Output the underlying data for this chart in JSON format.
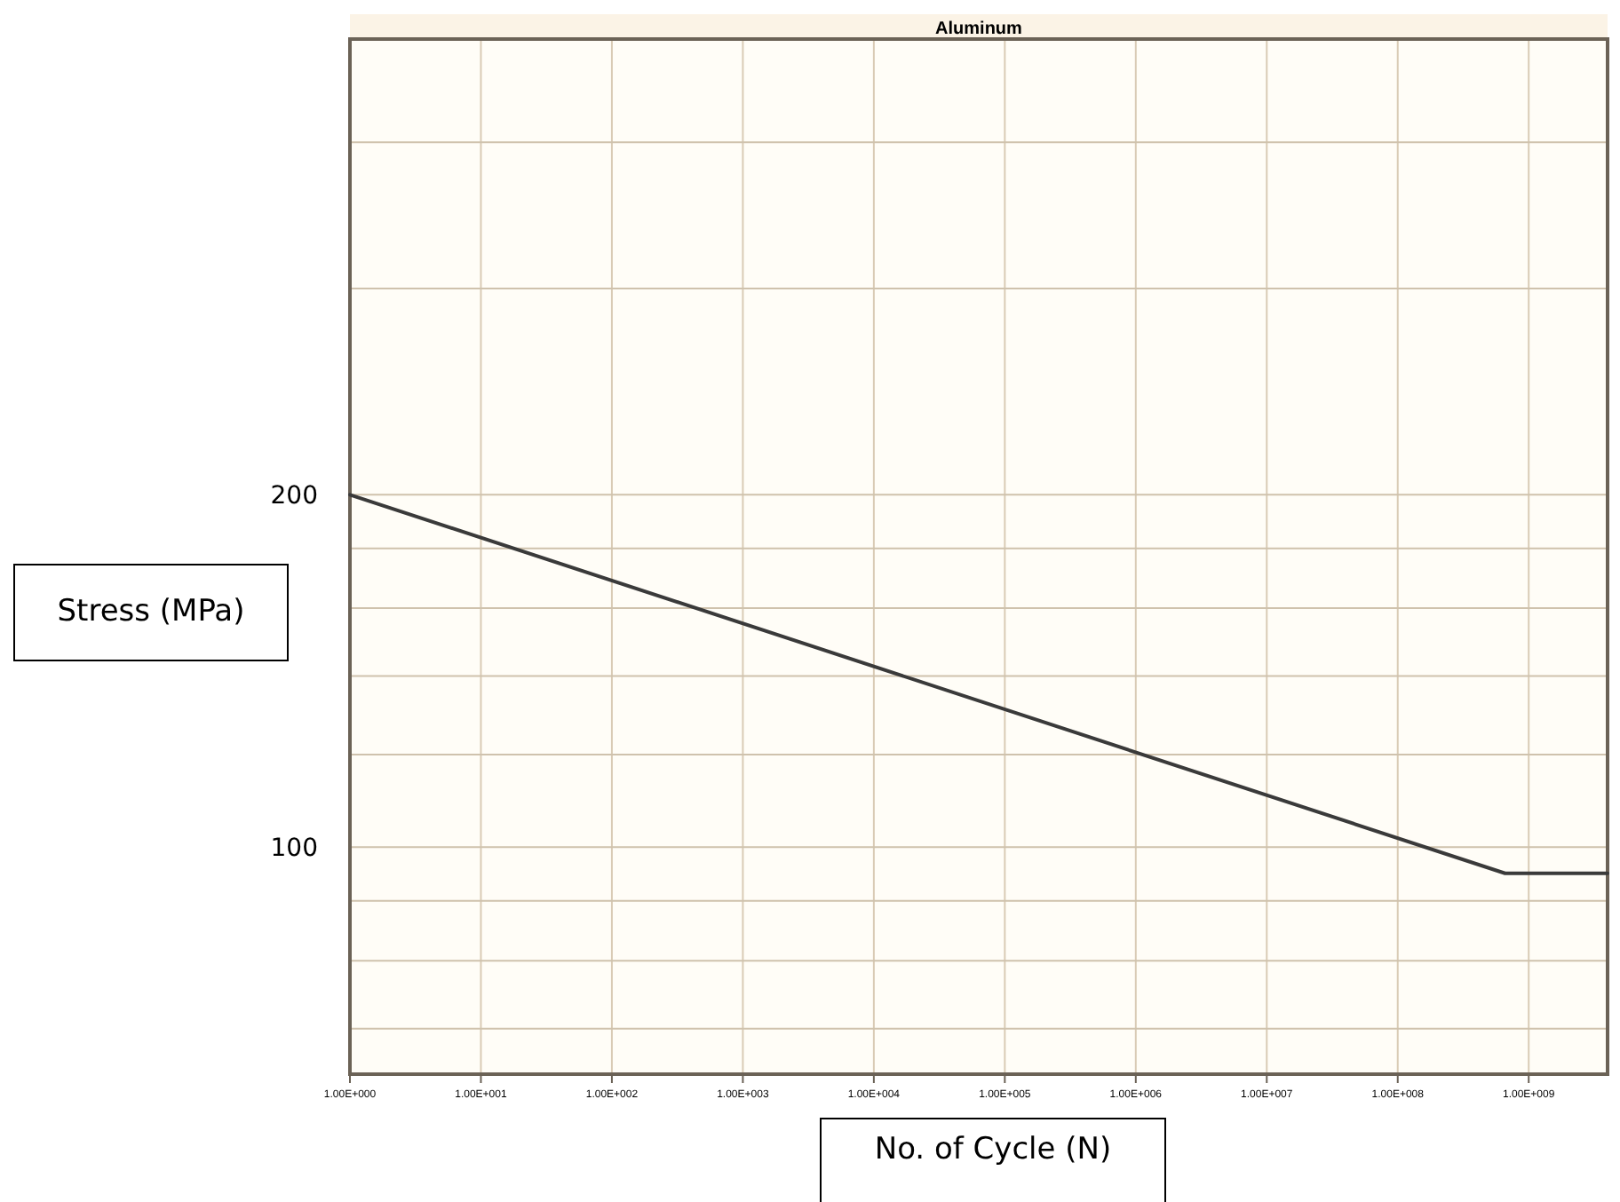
{
  "chart_data": {
    "type": "line",
    "title": "Aluminum",
    "xlabel": "No. of Cycle (N)",
    "ylabel": "Stress (MPa)",
    "log": "xy",
    "grid": true,
    "marker": "none",
    "line_style": "solid",
    "x": [
      1,
      660000000,
      4000000000
    ],
    "series": [
      {
        "color": "#3a3a3a",
        "values": [
          200,
          95,
          95
        ]
      }
    ],
    "xlim": [
      1,
      4000000000
    ],
    "ylim": [
      64,
      490
    ],
    "xticks": [
      {
        "value": 1,
        "label": "1.00E+000"
      },
      {
        "value": 10,
        "label": "1.00E+001"
      },
      {
        "value": 100,
        "label": "1.00E+002"
      },
      {
        "value": 1000,
        "label": "1.00E+003"
      },
      {
        "value": 10000,
        "label": "1.00E+004"
      },
      {
        "value": 100000,
        "label": "1.00E+005"
      },
      {
        "value": 1000000,
        "label": "1.00E+006"
      },
      {
        "value": 10000000,
        "label": "1.00E+007"
      },
      {
        "value": 100000000,
        "label": "1.00E+008"
      },
      {
        "value": 1000000000,
        "label": "1.00E+009"
      }
    ],
    "yticks": [
      {
        "value": 70,
        "label": null
      },
      {
        "value": 80,
        "label": null
      },
      {
        "value": 90,
        "label": null
      },
      100,
      {
        "value": 120,
        "label": null
      },
      {
        "value": 140,
        "label": null
      },
      {
        "value": 160,
        "label": null
      },
      {
        "value": 180,
        "label": null
      },
      200,
      {
        "value": 300,
        "label": null
      },
      {
        "value": 400,
        "label": null
      }
    ]
  }
}
